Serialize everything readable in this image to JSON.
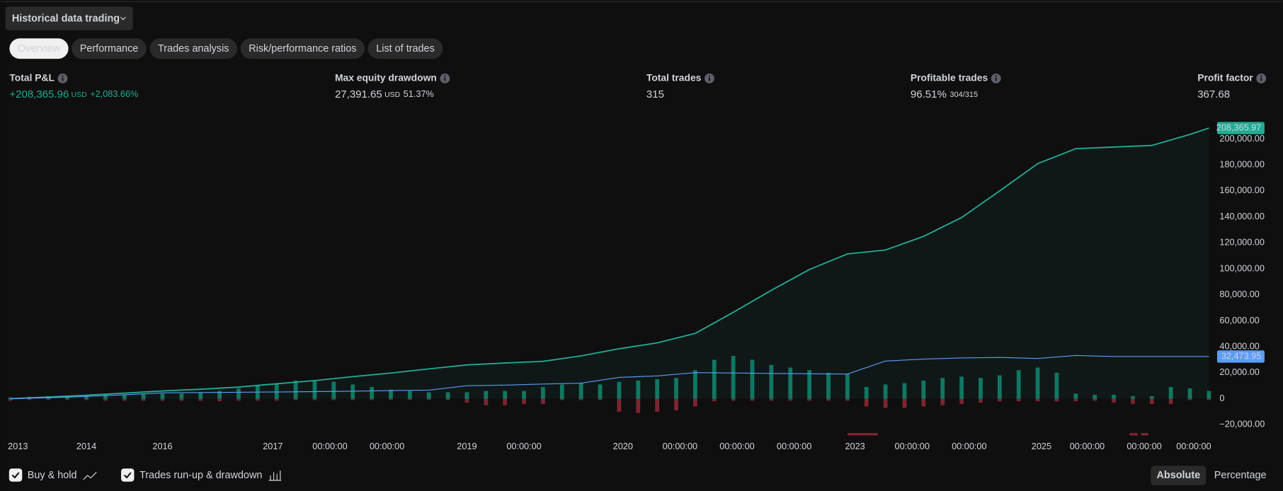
{
  "header": {
    "dropdown": "Historical data trading"
  },
  "tabs": [
    "Overview",
    "Performance",
    "Trades analysis",
    "Risk/performance ratios",
    "List of trades"
  ],
  "active_tab": 0,
  "stats": [
    {
      "label": "Total P&L",
      "value": "+208,365.96",
      "unit": "USD",
      "extra": "+2,083.66%",
      "color": "#22ab94"
    },
    {
      "label": "Max equity drawdown",
      "value": "27,391.65",
      "unit": "USD",
      "extra": "51.37%",
      "color": "#d1d4dc"
    },
    {
      "label": "Total trades",
      "value": "315",
      "color": "#d1d4dc"
    },
    {
      "label": "Profitable trades",
      "value": "96.51%",
      "extra": "304/315",
      "color": "#d1d4dc"
    },
    {
      "label": "Profit factor",
      "value": "367.68",
      "color": "#d1d4dc"
    }
  ],
  "chart_data": {
    "type": "line",
    "xlim": [
      0,
      315
    ],
    "xticks": [
      {
        "value": 2,
        "label": "2013"
      },
      {
        "value": 20,
        "label": "2014"
      },
      {
        "value": 40,
        "label": "2016"
      },
      {
        "value": 69,
        "label": "2017"
      },
      {
        "value": 84,
        "label": "00:00:00"
      },
      {
        "value": 99,
        "label": "00:00:00"
      },
      {
        "value": 120,
        "label": "2019"
      },
      {
        "value": 135,
        "label": "00:00:00"
      },
      {
        "value": 161,
        "label": "2020"
      },
      {
        "value": 176,
        "label": "00:00:00"
      },
      {
        "value": 191,
        "label": "00:00:00"
      },
      {
        "value": 206,
        "label": "00:00:00"
      },
      {
        "value": 222,
        "label": "2023"
      },
      {
        "value": 237,
        "label": "00:00:00"
      },
      {
        "value": 252,
        "label": "00:00:00"
      },
      {
        "value": 271,
        "label": "2025"
      },
      {
        "value": 283,
        "label": "00:00:00"
      },
      {
        "value": 298,
        "label": "00:00:00"
      },
      {
        "value": 311,
        "label": "00:00:00"
      }
    ],
    "ylim": [
      -26000,
      212000
    ],
    "yticks": [
      {
        "value": -20000,
        "label": "−20,000.00"
      },
      0,
      {
        "value": 20000,
        "label": "20,000.00"
      },
      {
        "value": 40000,
        "label": "40,000.00"
      },
      {
        "value": 60000,
        "label": "60,000.00"
      },
      {
        "value": 80000,
        "label": "80,000.00"
      },
      {
        "value": 100000,
        "label": "100,000.00"
      },
      {
        "value": 120000,
        "label": "120,000.00"
      },
      {
        "value": 140000,
        "label": "140,000.00"
      },
      {
        "value": 160000,
        "label": "160,000.00"
      },
      {
        "value": 180000,
        "label": "180,000.00"
      },
      {
        "value": 200000,
        "label": "200,000.00"
      }
    ],
    "grid": false,
    "series": [
      {
        "type": "line",
        "color": "#22ab94",
        "area": true,
        "x": [
          0,
          10,
          20,
          30,
          40,
          50,
          60,
          70,
          80,
          90,
          100,
          110,
          120,
          130,
          140,
          150,
          160,
          170,
          180,
          190,
          200,
          210,
          220,
          230,
          240,
          250,
          260,
          270,
          280,
          290,
          300,
          310,
          315
        ],
        "values": [
          0,
          1300,
          2700,
          4300,
          6000,
          7300,
          9000,
          11500,
          14000,
          17000,
          19800,
          23000,
          26000,
          27500,
          28800,
          33000,
          38500,
          43000,
          50300,
          66500,
          83500,
          99500,
          111500,
          114500,
          125000,
          139500,
          160000,
          181000,
          192500,
          193800,
          195000,
          203500,
          208365.97
        ],
        "value_labels": [
          null,
          null,
          null,
          null,
          null,
          null,
          null,
          null,
          null,
          null,
          null,
          null,
          null,
          null,
          null,
          null,
          null,
          null,
          null,
          null,
          null,
          null,
          null,
          null,
          null,
          null,
          null,
          null,
          null,
          null,
          null,
          null,
          "208,365.97"
        ]
      },
      {
        "type": "line",
        "name": "Buy & hold",
        "visible": true,
        "color": "#5b9cf6",
        "x": [
          0,
          10,
          20,
          30,
          40,
          50,
          60,
          70,
          80,
          90,
          100,
          110,
          120,
          130,
          140,
          150,
          160,
          170,
          180,
          190,
          200,
          210,
          220,
          230,
          240,
          250,
          260,
          270,
          280,
          290,
          300,
          310,
          315
        ],
        "values": [
          0,
          800,
          1800,
          3000,
          4500,
          4800,
          5000,
          5200,
          5500,
          5800,
          6300,
          6600,
          10000,
          10500,
          11300,
          12000,
          16400,
          17600,
          20100,
          19800,
          19500,
          19200,
          19000,
          29000,
          30500,
          31400,
          31800,
          31000,
          33300,
          32500,
          32500,
          32500,
          32473.95
        ],
        "value_labels": [
          null,
          null,
          null,
          null,
          null,
          null,
          null,
          null,
          null,
          null,
          null,
          null,
          null,
          null,
          null,
          null,
          null,
          null,
          null,
          null,
          null,
          null,
          null,
          null,
          null,
          null,
          null,
          null,
          null,
          null,
          null,
          null,
          "32,473.95"
        ]
      },
      {
        "type": "bar",
        "name": "Trades run-up & drawdown",
        "visible": true,
        "color": "#0e7560",
        "drawdown_color": "#7d2430",
        "x": [
          0,
          5,
          10,
          15,
          20,
          25,
          30,
          35,
          40,
          45,
          50,
          55,
          60,
          65,
          70,
          75,
          80,
          85,
          90,
          95,
          100,
          105,
          110,
          115,
          120,
          125,
          130,
          135,
          140,
          145,
          150,
          155,
          160,
          165,
          170,
          175,
          180,
          185,
          190,
          195,
          200,
          205,
          210,
          215,
          220,
          225,
          230,
          235,
          240,
          245,
          250,
          255,
          260,
          265,
          270,
          275,
          280,
          285,
          290,
          295,
          300,
          305,
          310,
          315
        ],
        "values": [
          1000,
          1500,
          2000,
          2000,
          2500,
          3000,
          3000,
          3500,
          4000,
          4000,
          5000,
          6000,
          8000,
          10000,
          12000,
          14000,
          14000,
          13000,
          11000,
          9000,
          7000,
          6000,
          5000,
          5000,
          5000,
          6000,
          6000,
          6000,
          9000,
          11000,
          12000,
          11000,
          13000,
          14000,
          15000,
          16000,
          22000,
          30000,
          33000,
          30000,
          26000,
          24000,
          22000,
          20000,
          19000,
          9000,
          11000,
          12000,
          14000,
          16000,
          17000,
          16000,
          18000,
          22000,
          24000,
          20000,
          4000,
          3000,
          3000,
          2000,
          2000,
          9000,
          8000,
          6000
        ],
        "drawdown": [
          -1500,
          -1000,
          -800,
          -800,
          -1000,
          -1500,
          -1500,
          -1500,
          -1500,
          -1500,
          -1500,
          -2000,
          -1500,
          -1500,
          -1500,
          -1000,
          -1000,
          -1000,
          -1000,
          -1000,
          -800,
          -800,
          -800,
          -1000,
          -3000,
          -5000,
          -5000,
          -4000,
          -4000,
          -1000,
          -1000,
          -1000,
          -10000,
          -11000,
          -10000,
          -9000,
          -6000,
          -2000,
          -1500,
          -1500,
          -1500,
          -1500,
          -1500,
          -1500,
          -1500,
          -6000,
          -7000,
          -7000,
          -6000,
          -5000,
          -4000,
          -3000,
          -2000,
          -2000,
          -2000,
          -2000,
          -2000,
          -1500,
          -3000,
          -4000,
          -4000,
          -4000,
          -1000,
          -1000
        ]
      }
    ]
  },
  "modes": [
    "Absolute",
    "Percentage"
  ],
  "active_mode": 0
}
